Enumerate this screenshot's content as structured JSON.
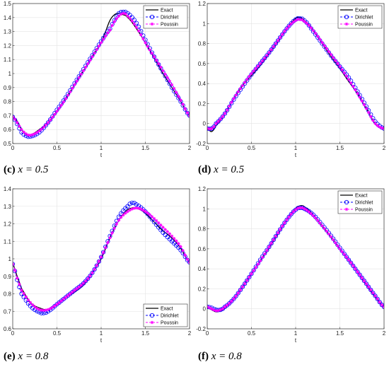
{
  "captions": [
    {
      "tag": "(c)",
      "math": "x = 0.5"
    },
    {
      "tag": "(d)",
      "math": "x = 0.5"
    },
    {
      "tag": "(e)",
      "math": "x = 0.8"
    },
    {
      "tag": "(f)",
      "math": "x = 0.8"
    }
  ],
  "colors": {
    "exact": "#000000",
    "dirichlet": "#0000ff",
    "poussin": "#ff00ff",
    "grid": "#e3e3e3"
  },
  "chart_data": [
    {
      "type": "line",
      "xlabel": "t",
      "ylabel": "",
      "xlim": [
        0,
        2
      ],
      "ylim": [
        0.5,
        1.5
      ],
      "xticks": [
        0,
        0.5,
        1,
        1.5,
        2
      ],
      "xtick_labels": [
        "0",
        "0.5",
        "1",
        "1.5",
        "2"
      ],
      "yticks": [
        0.5,
        0.6,
        0.7,
        0.8,
        0.9,
        1,
        1.1,
        1.2,
        1.3,
        1.4,
        1.5
      ],
      "ytick_labels": [
        "0.5",
        "0.6",
        "0.7",
        "0.8",
        "0.9",
        "1",
        "1.1",
        "1.2",
        "1.3",
        "1.4",
        "1.5"
      ],
      "grid": true,
      "legend": "top-right",
      "series": [
        {
          "name": "Exact",
          "style": "solid",
          "x": [
            0,
            0.05,
            0.1,
            0.15,
            0.2,
            0.3,
            0.4,
            0.5,
            0.6,
            0.7,
            0.8,
            0.9,
            1.0,
            1.05,
            1.1,
            1.15,
            1.2,
            1.25,
            1.3,
            1.4,
            1.5,
            1.6,
            1.7,
            1.8,
            1.9,
            2.0
          ],
          "y": [
            0.69,
            0.66,
            0.6,
            0.565,
            0.56,
            0.6,
            0.65,
            0.73,
            0.82,
            0.92,
            1.02,
            1.12,
            1.22,
            1.3,
            1.38,
            1.42,
            1.43,
            1.42,
            1.4,
            1.32,
            1.22,
            1.11,
            1.0,
            0.9,
            0.8,
            0.7
          ]
        },
        {
          "name": "Dirichlet",
          "style": "dashed-circle",
          "x": [
            0,
            0.05,
            0.1,
            0.15,
            0.2,
            0.3,
            0.4,
            0.5,
            0.6,
            0.7,
            0.8,
            0.9,
            1.0,
            1.1,
            1.15,
            1.2,
            1.25,
            1.3,
            1.4,
            1.5,
            1.6,
            1.7,
            1.8,
            1.9,
            2.0
          ],
          "y": [
            0.69,
            0.64,
            0.58,
            0.555,
            0.55,
            0.58,
            0.65,
            0.74,
            0.83,
            0.93,
            1.03,
            1.13,
            1.23,
            1.32,
            1.38,
            1.43,
            1.44,
            1.43,
            1.36,
            1.24,
            1.12,
            1.01,
            0.9,
            0.8,
            0.7
          ]
        },
        {
          "name": "Poussin",
          "style": "dashed-star",
          "x": [
            0,
            0.05,
            0.1,
            0.15,
            0.2,
            0.3,
            0.4,
            0.5,
            0.6,
            0.7,
            0.8,
            0.9,
            1.0,
            1.1,
            1.15,
            1.2,
            1.25,
            1.3,
            1.4,
            1.5,
            1.6,
            1.7,
            1.8,
            1.9,
            2.0
          ],
          "y": [
            0.69,
            0.65,
            0.6,
            0.57,
            0.56,
            0.59,
            0.65,
            0.73,
            0.82,
            0.92,
            1.02,
            1.12,
            1.22,
            1.31,
            1.37,
            1.41,
            1.43,
            1.41,
            1.33,
            1.22,
            1.12,
            1.02,
            0.92,
            0.81,
            0.7
          ]
        }
      ]
    },
    {
      "type": "line",
      "xlabel": "t",
      "ylabel": "",
      "xlim": [
        0,
        2
      ],
      "ylim": [
        -0.2,
        1.2
      ],
      "xticks": [
        0,
        0.5,
        1,
        1.5,
        2
      ],
      "xtick_labels": [
        "0",
        "0.5",
        "1",
        "1.5",
        "2"
      ],
      "yticks": [
        -0.2,
        0,
        0.2,
        0.4,
        0.6,
        0.8,
        1,
        1.2
      ],
      "ytick_labels": [
        "-0.2",
        "0",
        "0.2",
        "0.4",
        "0.6",
        "0.8",
        "1",
        "1.2"
      ],
      "grid": true,
      "legend": "top-right",
      "series": [
        {
          "name": "Exact",
          "style": "solid",
          "x": [
            0,
            0.05,
            0.1,
            0.2,
            0.3,
            0.4,
            0.5,
            0.6,
            0.7,
            0.8,
            0.9,
            1.0,
            1.05,
            1.1,
            1.2,
            1.3,
            1.4,
            1.5,
            1.6,
            1.7,
            1.8,
            1.9,
            2.0
          ],
          "y": [
            -0.05,
            -0.08,
            -0.02,
            0.1,
            0.25,
            0.38,
            0.48,
            0.58,
            0.7,
            0.82,
            0.95,
            1.05,
            1.06,
            1.03,
            0.93,
            0.8,
            0.67,
            0.55,
            0.42,
            0.3,
            0.15,
            0.0,
            -0.05
          ]
        },
        {
          "name": "Dirichlet",
          "style": "dashed-circle",
          "x": [
            0,
            0.05,
            0.1,
            0.2,
            0.3,
            0.4,
            0.5,
            0.6,
            0.7,
            0.8,
            0.9,
            1.0,
            1.05,
            1.1,
            1.2,
            1.3,
            1.4,
            1.5,
            1.6,
            1.7,
            1.8,
            1.9,
            2.0
          ],
          "y": [
            -0.05,
            -0.05,
            0.0,
            0.1,
            0.24,
            0.37,
            0.49,
            0.6,
            0.71,
            0.83,
            0.95,
            1.04,
            1.05,
            1.03,
            0.92,
            0.8,
            0.68,
            0.57,
            0.46,
            0.32,
            0.17,
            0.02,
            -0.05
          ]
        },
        {
          "name": "Poussin",
          "style": "dashed-star",
          "x": [
            0,
            0.05,
            0.1,
            0.2,
            0.3,
            0.4,
            0.5,
            0.6,
            0.7,
            0.8,
            0.9,
            1.0,
            1.05,
            1.1,
            1.2,
            1.3,
            1.4,
            1.5,
            1.6,
            1.7,
            1.8,
            1.9,
            2.0
          ],
          "y": [
            -0.05,
            -0.05,
            0.0,
            0.1,
            0.25,
            0.38,
            0.5,
            0.6,
            0.71,
            0.83,
            0.95,
            1.03,
            1.04,
            1.02,
            0.93,
            0.81,
            0.69,
            0.57,
            0.44,
            0.3,
            0.15,
            0.0,
            -0.05
          ]
        }
      ]
    },
    {
      "type": "line",
      "xlabel": "t",
      "ylabel": "",
      "xlim": [
        0,
        2
      ],
      "ylim": [
        0.6,
        1.4
      ],
      "xticks": [
        0,
        0.5,
        1,
        1.5,
        2
      ],
      "xtick_labels": [
        "0",
        "0.5",
        "1",
        "1.5",
        "2"
      ],
      "yticks": [
        0.6,
        0.7,
        0.8,
        0.9,
        1,
        1.1,
        1.2,
        1.3,
        1.4
      ],
      "ytick_labels": [
        "0.6",
        "0.7",
        "0.8",
        "0.9",
        "1",
        "1.1",
        "1.2",
        "1.3",
        "1.4"
      ],
      "grid": true,
      "legend": "bottom-right",
      "series": [
        {
          "name": "Exact",
          "style": "solid",
          "x": [
            0,
            0.05,
            0.1,
            0.2,
            0.3,
            0.4,
            0.5,
            0.6,
            0.7,
            0.8,
            0.9,
            1.0,
            1.1,
            1.2,
            1.3,
            1.4,
            1.5,
            1.6,
            1.7,
            1.8,
            1.9,
            2.0
          ],
          "y": [
            0.97,
            0.9,
            0.83,
            0.75,
            0.72,
            0.71,
            0.74,
            0.78,
            0.81,
            0.85,
            0.92,
            1.0,
            1.12,
            1.22,
            1.28,
            1.29,
            1.26,
            1.21,
            1.16,
            1.12,
            1.06,
            0.98
          ]
        },
        {
          "name": "Dirichlet",
          "style": "dashed-circle",
          "x": [
            0,
            0.05,
            0.1,
            0.2,
            0.3,
            0.35,
            0.4,
            0.5,
            0.6,
            0.7,
            0.8,
            0.9,
            1.0,
            1.1,
            1.2,
            1.3,
            1.35,
            1.4,
            1.5,
            1.6,
            1.7,
            1.8,
            1.9,
            2.0
          ],
          "y": [
            0.97,
            0.88,
            0.8,
            0.73,
            0.695,
            0.69,
            0.7,
            0.74,
            0.78,
            0.82,
            0.86,
            0.92,
            1.01,
            1.13,
            1.24,
            1.3,
            1.32,
            1.31,
            1.27,
            1.21,
            1.15,
            1.1,
            1.05,
            0.98
          ]
        },
        {
          "name": "Poussin",
          "style": "dashed-star",
          "x": [
            0,
            0.05,
            0.1,
            0.2,
            0.3,
            0.4,
            0.5,
            0.6,
            0.7,
            0.8,
            0.9,
            1.0,
            1.1,
            1.2,
            1.3,
            1.4,
            1.5,
            1.6,
            1.7,
            1.8,
            1.9,
            2.0
          ],
          "y": [
            0.97,
            0.89,
            0.82,
            0.75,
            0.71,
            0.71,
            0.74,
            0.78,
            0.82,
            0.86,
            0.92,
            1.01,
            1.12,
            1.22,
            1.27,
            1.29,
            1.27,
            1.23,
            1.18,
            1.13,
            1.07,
            0.98
          ]
        }
      ]
    },
    {
      "type": "line",
      "xlabel": "t",
      "ylabel": "",
      "xlim": [
        0,
        2
      ],
      "ylim": [
        -0.2,
        1.2
      ],
      "xticks": [
        0,
        0.5,
        1,
        1.5,
        2
      ],
      "xtick_labels": [
        "0",
        "0.5",
        "1",
        "1.5",
        "2"
      ],
      "yticks": [
        -0.2,
        0,
        0.2,
        0.4,
        0.6,
        0.8,
        1,
        1.2
      ],
      "ytick_labels": [
        "-0.2",
        "0",
        "0.2",
        "0.4",
        "0.6",
        "0.8",
        "1",
        "1.2"
      ],
      "grid": true,
      "legend": "top-right",
      "series": [
        {
          "name": "Exact",
          "style": "solid",
          "x": [
            0,
            0.05,
            0.1,
            0.15,
            0.2,
            0.3,
            0.4,
            0.5,
            0.6,
            0.7,
            0.8,
            0.9,
            1.0,
            1.05,
            1.1,
            1.2,
            1.3,
            1.4,
            1.5,
            1.6,
            1.7,
            1.8,
            1.9,
            2.0
          ],
          "y": [
            0.02,
            -0.01,
            -0.03,
            -0.02,
            0.01,
            0.1,
            0.22,
            0.35,
            0.48,
            0.61,
            0.75,
            0.89,
            1.0,
            1.03,
            1.02,
            0.94,
            0.83,
            0.72,
            0.6,
            0.49,
            0.37,
            0.24,
            0.12,
            0.02
          ]
        },
        {
          "name": "Dirichlet",
          "style": "dashed-circle",
          "x": [
            0,
            0.05,
            0.1,
            0.15,
            0.2,
            0.3,
            0.4,
            0.5,
            0.6,
            0.7,
            0.8,
            0.9,
            1.0,
            1.05,
            1.1,
            1.2,
            1.3,
            1.4,
            1.5,
            1.6,
            1.7,
            1.8,
            1.9,
            2.0
          ],
          "y": [
            0.02,
            0.01,
            -0.01,
            -0.01,
            0.02,
            0.1,
            0.22,
            0.35,
            0.49,
            0.62,
            0.76,
            0.89,
            0.99,
            1.01,
            1.0,
            0.94,
            0.84,
            0.73,
            0.61,
            0.49,
            0.37,
            0.25,
            0.13,
            0.02
          ]
        },
        {
          "name": "Poussin",
          "style": "dashed-star",
          "x": [
            0,
            0.05,
            0.1,
            0.15,
            0.2,
            0.3,
            0.4,
            0.5,
            0.6,
            0.7,
            0.8,
            0.9,
            1.0,
            1.05,
            1.1,
            1.2,
            1.3,
            1.4,
            1.5,
            1.6,
            1.7,
            1.8,
            1.9,
            2.0
          ],
          "y": [
            0.02,
            0.0,
            -0.02,
            -0.01,
            0.02,
            0.1,
            0.22,
            0.35,
            0.48,
            0.62,
            0.76,
            0.89,
            0.99,
            1.01,
            1.0,
            0.93,
            0.83,
            0.72,
            0.6,
            0.49,
            0.37,
            0.25,
            0.13,
            0.02
          ]
        }
      ]
    }
  ]
}
